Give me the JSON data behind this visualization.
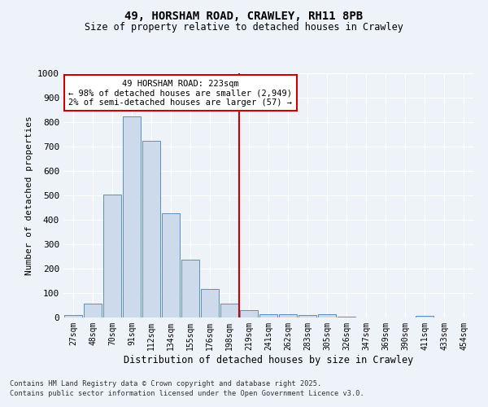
{
  "title_line1": "49, HORSHAM ROAD, CRAWLEY, RH11 8PB",
  "title_line2": "Size of property relative to detached houses in Crawley",
  "xlabel": "Distribution of detached houses by size in Crawley",
  "ylabel": "Number of detached properties",
  "footer_line1": "Contains HM Land Registry data © Crown copyright and database right 2025.",
  "footer_line2": "Contains public sector information licensed under the Open Government Licence v3.0.",
  "bar_labels": [
    "27sqm",
    "48sqm",
    "70sqm",
    "91sqm",
    "112sqm",
    "134sqm",
    "155sqm",
    "176sqm",
    "198sqm",
    "219sqm",
    "241sqm",
    "262sqm",
    "283sqm",
    "305sqm",
    "326sqm",
    "347sqm",
    "369sqm",
    "390sqm",
    "411sqm",
    "433sqm",
    "454sqm"
  ],
  "bar_values": [
    10,
    57,
    505,
    825,
    723,
    428,
    238,
    117,
    57,
    30,
    14,
    12,
    10,
    12,
    5,
    0,
    0,
    0,
    7,
    0,
    0
  ],
  "bar_color": "#cddaeb",
  "bar_edge_color": "#5b8ec4",
  "ylim": [
    0,
    1000
  ],
  "yticks": [
    0,
    100,
    200,
    300,
    400,
    500,
    600,
    700,
    800,
    900,
    1000
  ],
  "vline_x_index": 9.0,
  "annotation_title": "49 HORSHAM ROAD: 223sqm",
  "annotation_line2": "← 98% of detached houses are smaller (2,949)",
  "annotation_line3": "2% of semi-detached houses are larger (57) →",
  "annotation_box_color": "#ffffff",
  "annotation_box_edge": "#cc0000",
  "vline_color": "#cc0000",
  "background_color": "#eef2f9",
  "grid_color": "#ffffff"
}
